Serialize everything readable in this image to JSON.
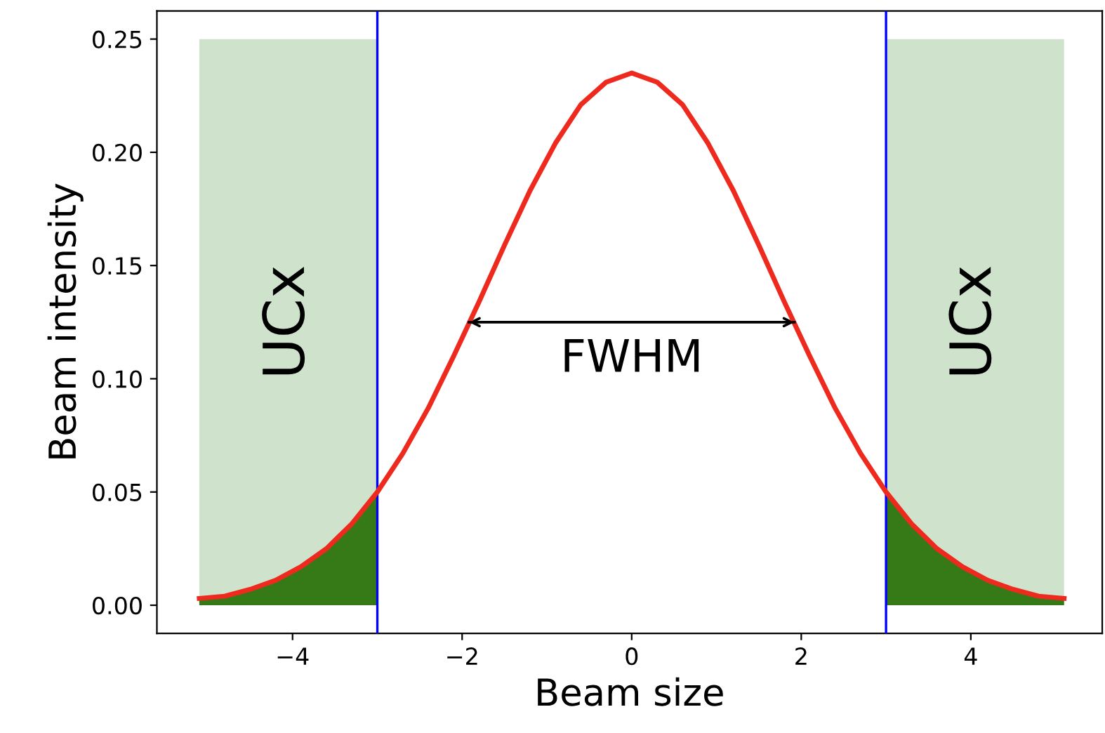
{
  "chart_data": {
    "type": "line",
    "xlabel": "Beam size",
    "ylabel": "Beam intensity",
    "xlim": [
      -5.6,
      5.55
    ],
    "ylim": [
      -0.0124,
      0.2624
    ],
    "xticks": [
      {
        "value": -4,
        "label": "−4"
      },
      {
        "value": -2,
        "label": "−2"
      },
      0,
      2,
      4
    ],
    "yticks": [
      {
        "value": 0,
        "label": "0.00"
      },
      {
        "value": 0.05,
        "label": "0.05"
      },
      {
        "value": 0.1,
        "label": "0.10"
      },
      {
        "value": 0.15,
        "label": "0.15"
      },
      {
        "value": 0.2,
        "label": "0.20"
      },
      {
        "value": 0.25,
        "label": "0.25"
      }
    ],
    "grid": false,
    "legend": false,
    "series": [
      {
        "type": "area",
        "color": "#cfe3cc",
        "x": [
          -5.1,
          -3.0
        ],
        "values": [
          0.25,
          0.25
        ]
      },
      {
        "type": "area",
        "color": "#cfe3cc",
        "x": [
          3.0,
          5.1
        ],
        "values": [
          0.25,
          0.25
        ]
      },
      {
        "type": "area",
        "color": "#367a18",
        "x": [
          -5.1,
          -4.8,
          -4.5,
          -4.2,
          -3.9,
          -3.6,
          -3.3,
          -3.0
        ],
        "values": [
          0.003,
          0.004,
          0.007,
          0.011,
          0.017,
          0.025,
          0.036,
          0.05
        ]
      },
      {
        "type": "area",
        "color": "#367a18",
        "x": [
          3.0,
          3.3,
          3.6,
          3.9,
          4.2,
          4.5,
          4.8,
          5.1
        ],
        "values": [
          0.05,
          0.036,
          0.025,
          0.017,
          0.011,
          0.007,
          0.004,
          0.003
        ]
      },
      {
        "color": "#ee2a1f",
        "x": [
          -5.1,
          -4.8,
          -4.5,
          -4.2,
          -3.9,
          -3.6,
          -3.3,
          -3.0,
          -2.7,
          -2.4,
          -2.1,
          -1.8,
          -1.5,
          -1.2,
          -0.9,
          -0.6,
          -0.3,
          0,
          0.3,
          0.6,
          0.9,
          1.2,
          1.5,
          1.8,
          2.1,
          2.4,
          2.7,
          3.0,
          3.3,
          3.6,
          3.9,
          4.2,
          4.5,
          4.8,
          5.1
        ],
        "values": [
          0.003,
          0.004,
          0.007,
          0.011,
          0.017,
          0.025,
          0.036,
          0.05,
          0.067,
          0.087,
          0.11,
          0.134,
          0.159,
          0.183,
          0.204,
          0.221,
          0.231,
          0.235,
          0.231,
          0.221,
          0.204,
          0.183,
          0.159,
          0.134,
          0.11,
          0.087,
          0.067,
          0.05,
          0.036,
          0.025,
          0.017,
          0.011,
          0.007,
          0.004,
          0.003
        ]
      },
      {
        "type": "line",
        "color": "#000000",
        "x": [
          -1.92,
          1.92
        ],
        "values": [
          0.125,
          0.125
        ]
      }
    ],
    "ref_lines": [
      {
        "axis": "x",
        "value": -3,
        "color": "#0000ff"
      },
      {
        "axis": "x",
        "value": 3,
        "color": "#0000ff"
      }
    ],
    "annotations": [
      "UCx",
      "UCx",
      "FWHM"
    ]
  }
}
